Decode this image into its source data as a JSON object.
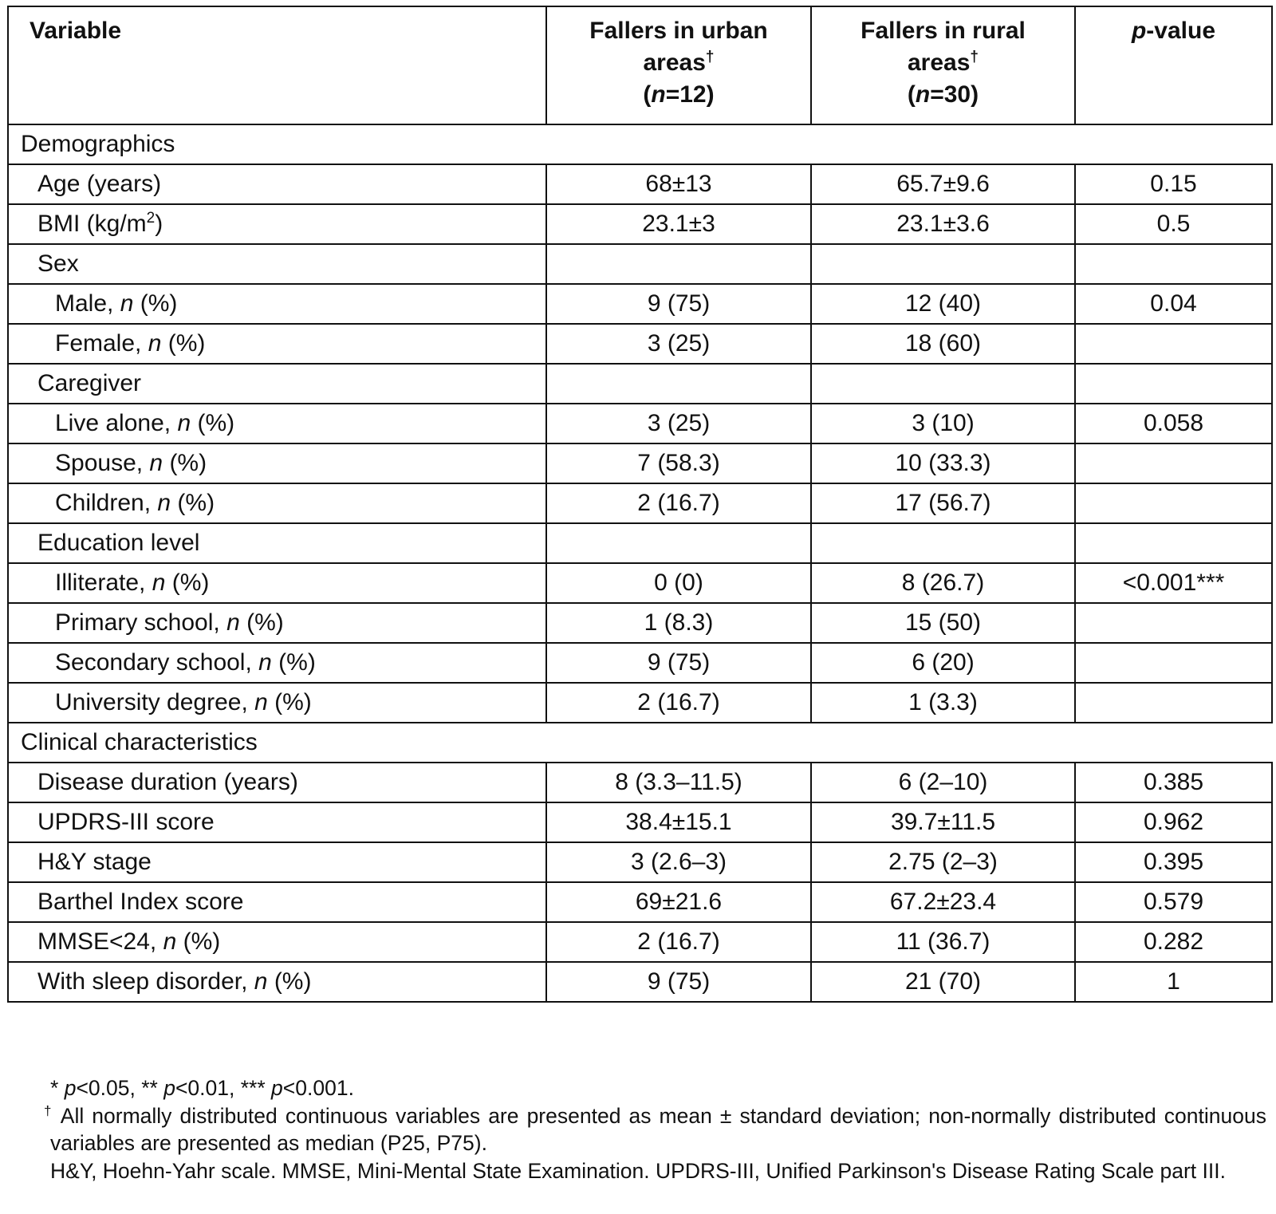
{
  "table": {
    "headers": {
      "variable": "Variable",
      "urban_line1": "Fallers in urban",
      "urban_line2": "areas",
      "urban_n_prefix": "(",
      "urban_n_italic": "n",
      "urban_n_suffix": "=12)",
      "rural_line1": "Fallers in rural",
      "rural_line2": "areas",
      "rural_n_prefix": "(",
      "rural_n_italic": "n",
      "rural_n_suffix": "=30)",
      "pvalue_italic": "p",
      "pvalue_suffix": "-value",
      "dagger": "†"
    },
    "sections": [
      {
        "title": "Demographics",
        "rows": [
          {
            "level": 1,
            "label": "Age (years)",
            "urban": "68±13",
            "rural": "65.7±9.6",
            "p": "0.15"
          },
          {
            "level": 1,
            "label": "BMI (kg/m",
            "label_sup": "2",
            "label_after": ")",
            "urban": "23.1±3",
            "rural": "23.1±3.6",
            "p": "0.5"
          },
          {
            "level": 1,
            "label": "Sex",
            "urban": "",
            "rural": "",
            "p": ""
          },
          {
            "level": 2,
            "label": "Male, ",
            "label_italic": "n",
            "label_after": " (%)",
            "urban": "9 (75)",
            "rural": "12 (40)",
            "p": "0.04"
          },
          {
            "level": 2,
            "label": "Female, ",
            "label_italic": "n",
            "label_after": " (%)",
            "urban": "3 (25)",
            "rural": "18 (60)",
            "p": ""
          },
          {
            "level": 1,
            "label": "Caregiver",
            "urban": "",
            "rural": "",
            "p": ""
          },
          {
            "level": 2,
            "label": "Live alone, ",
            "label_italic": "n",
            "label_after": " (%)",
            "urban": "3 (25)",
            "rural": "3 (10)",
            "p": "0.058"
          },
          {
            "level": 2,
            "label": "Spouse, ",
            "label_italic": "n",
            "label_after": " (%)",
            "urban": "7 (58.3)",
            "rural": "10 (33.3)",
            "p": ""
          },
          {
            "level": 2,
            "label": "Children, ",
            "label_italic": "n",
            "label_after": " (%)",
            "urban": "2 (16.7)",
            "rural": "17 (56.7)",
            "p": ""
          },
          {
            "level": 1,
            "label": "Education level",
            "urban": "",
            "rural": "",
            "p": ""
          },
          {
            "level": 2,
            "label": "Illiterate, ",
            "label_italic": "n",
            "label_after": " (%)",
            "urban": "0 (0)",
            "rural": "8 (26.7)",
            "p": "<0.001***"
          },
          {
            "level": 2,
            "label": "Primary school, ",
            "label_italic": "n",
            "label_after": " (%)",
            "urban": "1 (8.3)",
            "rural": "15 (50)",
            "p": ""
          },
          {
            "level": 2,
            "label": "Secondary school, ",
            "label_italic": "n",
            "label_after": " (%)",
            "urban": "9 (75)",
            "rural": "6 (20)",
            "p": ""
          },
          {
            "level": 2,
            "label": "University degree, ",
            "label_italic": "n",
            "label_after": " (%)",
            "urban": "2 (16.7)",
            "rural": "1 (3.3)",
            "p": ""
          }
        ]
      },
      {
        "title": "Clinical characteristics",
        "rows": [
          {
            "level": 1,
            "label": "Disease duration (years)",
            "urban": "8 (3.3–11.5)",
            "rural": "6 (2–10)",
            "p": "0.385"
          },
          {
            "level": 1,
            "label": "UPDRS-III score",
            "urban": "38.4±15.1",
            "rural": "39.7±11.5",
            "p": "0.962"
          },
          {
            "level": 1,
            "label": "H&Y stage",
            "urban": "3 (2.6–3)",
            "rural": "2.75 (2–3)",
            "p": "0.395"
          },
          {
            "level": 1,
            "label": "Barthel Index score",
            "urban": "69±21.6",
            "rural": "67.2±23.4",
            "p": "0.579"
          },
          {
            "level": 1,
            "label": "MMSE<24, ",
            "label_italic": "n",
            "label_after": " (%)",
            "urban": "2 (16.7)",
            "rural": "11 (36.7)",
            "p": "0.282"
          },
          {
            "level": 1,
            "label": "With sleep disorder, ",
            "label_italic": "n",
            "label_after": " (%)",
            "urban": "9 (75)",
            "rural": "21 (70)",
            "p": "1"
          }
        ]
      }
    ]
  },
  "footnotes": {
    "sig_parts": [
      "* ",
      "p",
      "<0.05, ** ",
      "p",
      "<0.01, *** ",
      "p",
      "<0.001."
    ],
    "dagger": "†",
    "dagger_text": " All normally distributed continuous variables are presented as mean ± standard deviation; non-normally distributed continuous variables are presented as median (P25, P75).",
    "abbreviations": "H&Y, Hoehn-Yahr scale. MMSE, Mini-Mental State Examination. UPDRS-III, Unified Parkinson's Disease Rating Scale part III."
  }
}
